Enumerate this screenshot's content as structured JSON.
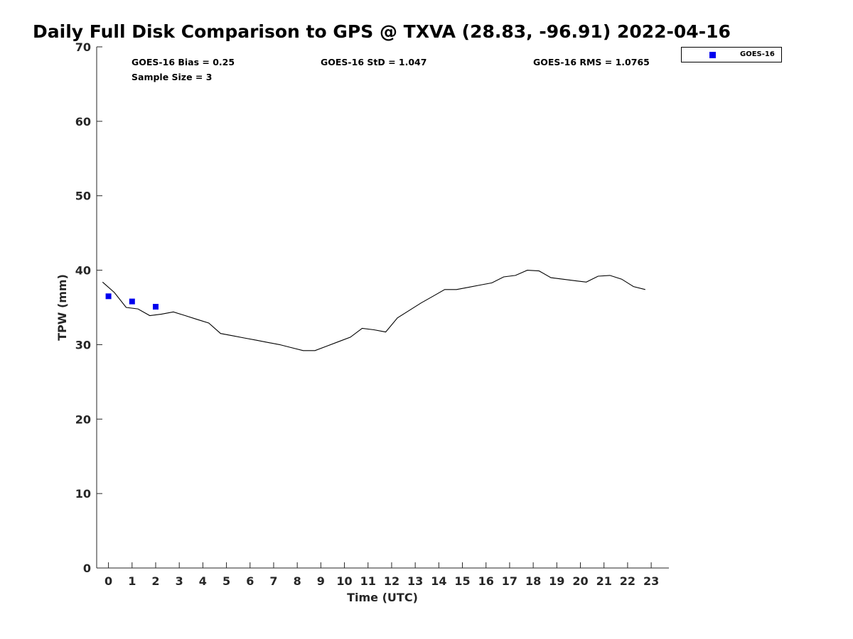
{
  "chart_data": {
    "type": "scatter",
    "title": "Daily Full Disk Comparison to GPS @ TXVA (28.83, -96.91) 2022-04-16",
    "xlabel": "Time (UTC)",
    "ylabel": "TPW (mm)",
    "xlim": [
      -0.5,
      23.75
    ],
    "ylim": [
      0,
      70
    ],
    "x_ticks": [
      0,
      1,
      2,
      3,
      4,
      5,
      6,
      7,
      8,
      9,
      10,
      11,
      12,
      13,
      14,
      15,
      16,
      17,
      18,
      19,
      20,
      21,
      22,
      23
    ],
    "y_ticks": [
      0,
      10,
      20,
      30,
      40,
      50,
      60,
      70
    ],
    "grid": false,
    "legend_position": "top-right",
    "stats": {
      "bias": "GOES-16 Bias = 0.25",
      "std": "GOES-16 StD = 1.047",
      "rms": "GOES-16 RMS = 1.0765",
      "sample_size": "Sample Size = 3"
    },
    "series": [
      {
        "name": "GOES-16",
        "type": "scatter",
        "color": "#0000ee",
        "marker": "square",
        "x": [
          0.0,
          1.0,
          2.0
        ],
        "y": [
          36.5,
          35.8,
          35.1
        ]
      },
      {
        "type": "line",
        "color": "#000000",
        "x": [
          -0.25,
          0.25,
          0.75,
          1.25,
          1.75,
          2.25,
          2.75,
          3.25,
          3.75,
          4.25,
          4.75,
          5.25,
          5.75,
          6.25,
          6.75,
          7.25,
          7.75,
          8.25,
          8.75,
          9.25,
          9.75,
          10.25,
          10.75,
          11.25,
          11.75,
          12.25,
          12.75,
          13.25,
          13.75,
          14.25,
          14.75,
          15.25,
          15.75,
          16.25,
          16.75,
          17.25,
          17.75,
          18.25,
          18.75,
          19.25,
          19.75,
          20.25,
          20.75,
          21.25,
          21.75,
          22.25,
          22.75
        ],
        "y": [
          38.4,
          37.0,
          35.0,
          34.8,
          33.9,
          34.1,
          34.4,
          33.9,
          33.4,
          32.9,
          31.5,
          31.2,
          30.9,
          30.6,
          30.3,
          30.0,
          29.6,
          29.2,
          29.2,
          29.8,
          30.4,
          31.0,
          32.2,
          32.0,
          31.7,
          33.6,
          34.6,
          35.6,
          36.5,
          37.4,
          37.4,
          37.7,
          38.0,
          38.3,
          39.1,
          39.3,
          40.0,
          39.9,
          39.0,
          38.8,
          38.6,
          38.4,
          39.2,
          39.3,
          38.8,
          37.8,
          37.4
        ]
      }
    ]
  }
}
